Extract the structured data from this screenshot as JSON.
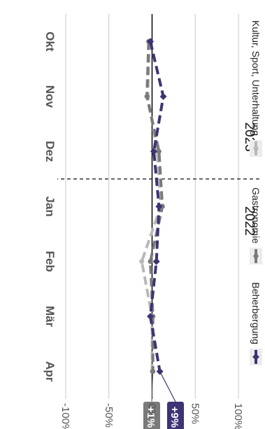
{
  "chart_data": {
    "type": "line",
    "orientation": "rotated-90-clockwise",
    "x": [
      "Okt",
      "Nov",
      "Dez",
      "Jan",
      "Feb",
      "Mär",
      "Apr"
    ],
    "ylim": [
      -100,
      100
    ],
    "yticks": [
      100,
      50,
      0,
      -50,
      -100
    ],
    "ytick_labels": [
      "100%",
      "50%",
      "0%",
      "-50%",
      "-100%"
    ],
    "year_labels": [
      "2022",
      "2023"
    ],
    "year_divider_after": "Dez",
    "grid": true,
    "legend_position": "right",
    "series": [
      {
        "name": "Beherbergung",
        "color": "#3d3375",
        "marker": "diamond",
        "style": "dashed",
        "values": [
          -2,
          13,
          2,
          8,
          5,
          -2,
          9
        ],
        "end_label": "+9%"
      },
      {
        "name": "Gastronomie",
        "color": "#7a7a7a",
        "marker": "circle",
        "style": "dashed",
        "values": [
          -4,
          -6,
          8,
          12,
          -2,
          1,
          1
        ],
        "end_label": "+1%"
      },
      {
        "name": "Kultur, Sport, Unterhaltung",
        "color": "#b8b8b8",
        "marker": "circle",
        "style": "dashed",
        "values": [
          -3,
          -5,
          6,
          10,
          -12,
          0,
          0
        ]
      }
    ]
  }
}
